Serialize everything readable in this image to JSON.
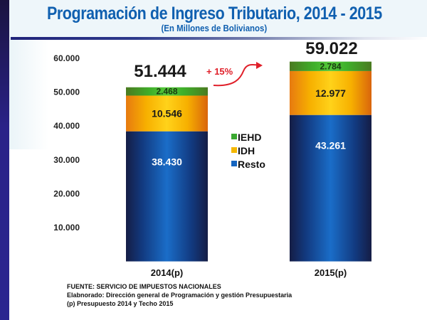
{
  "header": {
    "title": "Programación de Ingreso Tributario, 2014 - 2015",
    "subtitle": "(En Millones de Bolivianos)"
  },
  "colors": {
    "title": "#1060b0",
    "IEHD": "#3aa830",
    "IDH": "#f5b800",
    "Resto": "#1565c0",
    "growth": "#e0202a",
    "side_bar": "#2a2288"
  },
  "chart_data": {
    "type": "bar",
    "stacked": true,
    "title": "Programación de Ingreso Tributario, 2014 - 2015",
    "subtitle": "(En Millones de Bolivianos)",
    "xlabel": "",
    "ylabel": "",
    "categories": [
      "2014(p)",
      "2015(p)"
    ],
    "series": [
      {
        "name": "Resto",
        "values": [
          38430,
          43261
        ],
        "labels": [
          "38.430",
          "43.261"
        ]
      },
      {
        "name": "IDH",
        "values": [
          10546,
          12977
        ],
        "labels": [
          "10.546",
          "12.977"
        ]
      },
      {
        "name": "IEHD",
        "values": [
          2468,
          2784
        ],
        "labels": [
          "2.468",
          "2.784"
        ]
      }
    ],
    "totals": [
      51444,
      59022
    ],
    "total_labels": [
      "51.444",
      "59.022"
    ],
    "annotation": "+ 15%",
    "ylim": [
      0,
      60000
    ],
    "yticks": [
      10000,
      20000,
      30000,
      40000,
      50000,
      60000
    ],
    "ytick_labels": [
      "10.000",
      "20.000",
      "30.000",
      "40.000",
      "50.000",
      "60.000"
    ],
    "legend": {
      "position": "center",
      "entries": [
        "IEHD",
        "IDH",
        "Resto"
      ]
    },
    "grid": false
  },
  "footnotes": [
    "FUENTE: SERVICIO DE IMPUESTOS NACIONALES",
    "Elabnorado: Dirección general de Programación y gestión Presupuestaria",
    "(p) Presupuesto 2014 y Techo 2015"
  ]
}
